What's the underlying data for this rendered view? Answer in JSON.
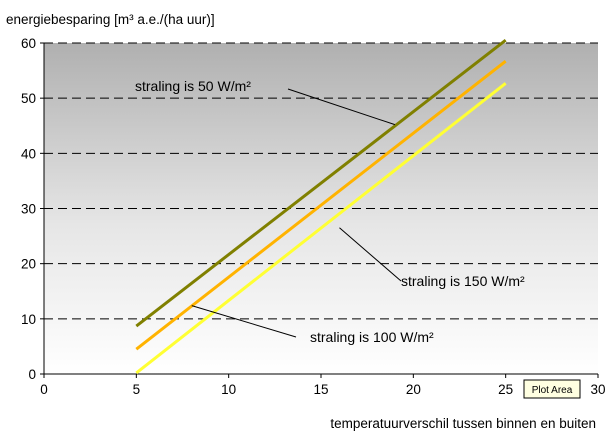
{
  "chart_data": {
    "type": "line",
    "ylabel": "energiebesparing [m³ a.e./(ha uur)]",
    "xlabel": "temperatuurverschil tussen binnen en buiten",
    "xlim": [
      0,
      30
    ],
    "ylim": [
      0,
      60
    ],
    "xticks": [
      "0",
      "5",
      "10",
      "15",
      "20",
      "25",
      "30"
    ],
    "yticks": [
      "0",
      "10",
      "20",
      "30",
      "40",
      "50",
      "60"
    ],
    "grid": "dashed horizontal",
    "background": "vertical gradient, grey at top to white at bottom",
    "series": [
      {
        "name": "straling is 50 W/m²",
        "color": "#808000",
        "x": [
          5,
          25
        ],
        "y": [
          8.7,
          60.5
        ]
      },
      {
        "name": "straling is 100 W/m²",
        "color": "#FFB300",
        "x": [
          5,
          25
        ],
        "y": [
          4.5,
          56.7
        ]
      },
      {
        "name": "straling is 150 W/m²",
        "color": "#FFFF33",
        "x": [
          5,
          25
        ],
        "y": [
          0.2,
          52.7
        ]
      }
    ],
    "annotations": [
      {
        "text": "straling is 50 W/m²",
        "series": 0,
        "point": [
          19,
          45.2
        ]
      },
      {
        "text": "straling is 150 W/m²",
        "series": 2,
        "point": [
          16,
          26.5
        ]
      },
      {
        "text": "straling is 100 W/m²",
        "series": 1,
        "point": [
          8,
          12.4
        ]
      }
    ],
    "tooltip": "Plot Area"
  }
}
